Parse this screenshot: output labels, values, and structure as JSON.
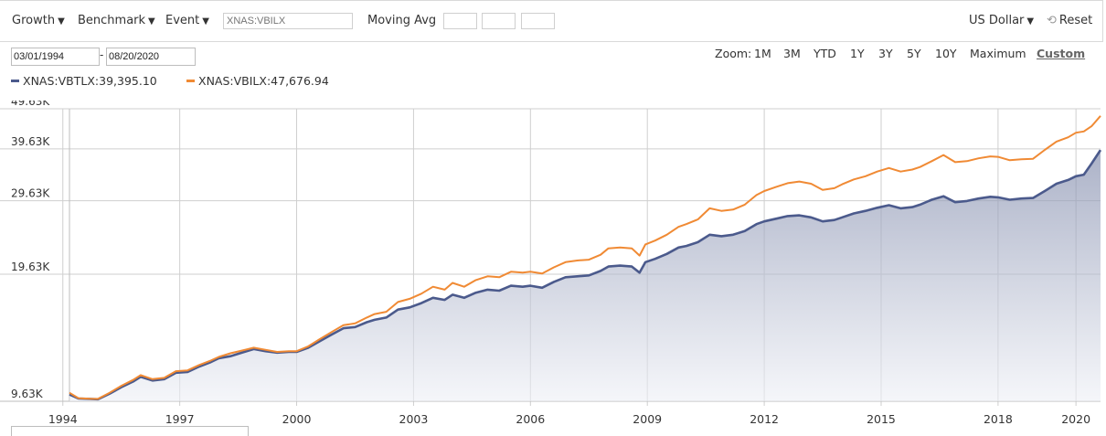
{
  "toolbar": {
    "growth_label": "Growth",
    "benchmark_label": "Benchmark",
    "event_label": "Event",
    "symbol_placeholder": "XNAS:VBILX",
    "moving_avg_label": "Moving Avg",
    "currency_label": "US Dollar",
    "reset_label": "Reset",
    "dropdown_icon": "triangle-down-icon",
    "reset_icon": "reset-icon"
  },
  "date_range": {
    "start": "03/01/1994",
    "separator": "-",
    "end": "08/20/2020"
  },
  "zoom": {
    "label": "Zoom:",
    "options": [
      "1M",
      "3M",
      "YTD",
      "1Y",
      "3Y",
      "5Y",
      "10Y",
      "Maximum",
      "Custom"
    ],
    "active": "Custom"
  },
  "legend": [
    {
      "label": "XNAS:VBTLX:39,395.10",
      "color": "#4b5a8c"
    },
    {
      "label": "XNAS:VBILX:47,676.94",
      "color": "#f08a34"
    }
  ],
  "chart_data": {
    "type": "area",
    "title": "",
    "xlabel": "",
    "ylabel": "",
    "y_scale": "log",
    "ylim": [
      9630,
      49630
    ],
    "yticks": [
      9630,
      19630,
      29630,
      39630,
      49630
    ],
    "ytick_labels": [
      "9.63K",
      "19.63K",
      "29.63K",
      "39.63K",
      "49.63K"
    ],
    "xlim": [
      1994.17,
      2020.63
    ],
    "xticks": [
      1994,
      1997,
      2000,
      2003,
      2006,
      2009,
      2012,
      2015,
      2018,
      2020
    ],
    "xtick_labels": [
      "1994",
      "1997",
      "2000",
      "2003",
      "2006",
      "2009",
      "2012",
      "2015",
      "2018",
      "2020"
    ],
    "grid": true,
    "series": [
      {
        "name": "XNAS:VBTLX",
        "color": "#4b5a8c",
        "fill": true,
        "points": [
          [
            1994.17,
            10000
          ],
          [
            1994.4,
            9780
          ],
          [
            1994.7,
            9760
          ],
          [
            1994.9,
            9740
          ],
          [
            1995.2,
            10050
          ],
          [
            1995.5,
            10420
          ],
          [
            1995.8,
            10750
          ],
          [
            1996.0,
            11050
          ],
          [
            1996.3,
            10820
          ],
          [
            1996.6,
            10900
          ],
          [
            1996.9,
            11300
          ],
          [
            1997.2,
            11350
          ],
          [
            1997.5,
            11700
          ],
          [
            1997.8,
            12000
          ],
          [
            1998.0,
            12250
          ],
          [
            1998.3,
            12400
          ],
          [
            1998.6,
            12650
          ],
          [
            1998.9,
            12900
          ],
          [
            1999.2,
            12750
          ],
          [
            1999.5,
            12650
          ],
          [
            1999.8,
            12700
          ],
          [
            2000.0,
            12700
          ],
          [
            2000.3,
            13000
          ],
          [
            2000.6,
            13500
          ],
          [
            2000.9,
            14000
          ],
          [
            2001.2,
            14500
          ],
          [
            2001.5,
            14600
          ],
          [
            2001.8,
            15000
          ],
          [
            2002.0,
            15200
          ],
          [
            2002.3,
            15400
          ],
          [
            2002.6,
            16100
          ],
          [
            2002.9,
            16300
          ],
          [
            2003.2,
            16700
          ],
          [
            2003.5,
            17200
          ],
          [
            2003.8,
            17000
          ],
          [
            2004.0,
            17500
          ],
          [
            2004.3,
            17200
          ],
          [
            2004.6,
            17700
          ],
          [
            2004.9,
            18000
          ],
          [
            2005.2,
            17900
          ],
          [
            2005.5,
            18400
          ],
          [
            2005.8,
            18300
          ],
          [
            2006.0,
            18400
          ],
          [
            2006.3,
            18200
          ],
          [
            2006.6,
            18800
          ],
          [
            2006.9,
            19300
          ],
          [
            2007.2,
            19400
          ],
          [
            2007.5,
            19500
          ],
          [
            2007.8,
            20000
          ],
          [
            2008.0,
            20500
          ],
          [
            2008.3,
            20600
          ],
          [
            2008.6,
            20500
          ],
          [
            2008.8,
            19800
          ],
          [
            2008.95,
            21000
          ],
          [
            2009.2,
            21400
          ],
          [
            2009.5,
            22000
          ],
          [
            2009.8,
            22800
          ],
          [
            2010.0,
            23000
          ],
          [
            2010.3,
            23500
          ],
          [
            2010.6,
            24500
          ],
          [
            2010.9,
            24300
          ],
          [
            2011.2,
            24500
          ],
          [
            2011.5,
            25000
          ],
          [
            2011.8,
            26000
          ],
          [
            2012.0,
            26400
          ],
          [
            2012.3,
            26800
          ],
          [
            2012.6,
            27200
          ],
          [
            2012.9,
            27300
          ],
          [
            2013.2,
            27000
          ],
          [
            2013.5,
            26400
          ],
          [
            2013.8,
            26600
          ],
          [
            2014.0,
            27000
          ],
          [
            2014.3,
            27600
          ],
          [
            2014.6,
            28000
          ],
          [
            2014.9,
            28500
          ],
          [
            2015.2,
            28900
          ],
          [
            2015.5,
            28400
          ],
          [
            2015.8,
            28600
          ],
          [
            2016.0,
            29000
          ],
          [
            2016.3,
            29800
          ],
          [
            2016.6,
            30400
          ],
          [
            2016.9,
            29400
          ],
          [
            2017.2,
            29600
          ],
          [
            2017.5,
            30000
          ],
          [
            2017.8,
            30300
          ],
          [
            2018.0,
            30200
          ],
          [
            2018.3,
            29800
          ],
          [
            2018.6,
            30000
          ],
          [
            2018.9,
            30100
          ],
          [
            2019.2,
            31300
          ],
          [
            2019.5,
            32600
          ],
          [
            2019.8,
            33300
          ],
          [
            2020.0,
            34000
          ],
          [
            2020.2,
            34300
          ],
          [
            2020.4,
            36500
          ],
          [
            2020.63,
            39395
          ]
        ]
      },
      {
        "name": "XNAS:VBILX",
        "color": "#f08a34",
        "fill": false,
        "points": [
          [
            1994.17,
            10100
          ],
          [
            1994.4,
            9800
          ],
          [
            1994.7,
            9770
          ],
          [
            1994.9,
            9760
          ],
          [
            1995.2,
            10100
          ],
          [
            1995.5,
            10500
          ],
          [
            1995.8,
            10850
          ],
          [
            1996.0,
            11150
          ],
          [
            1996.3,
            10900
          ],
          [
            1996.6,
            10980
          ],
          [
            1996.9,
            11400
          ],
          [
            1997.2,
            11450
          ],
          [
            1997.5,
            11800
          ],
          [
            1997.8,
            12100
          ],
          [
            1998.0,
            12350
          ],
          [
            1998.3,
            12600
          ],
          [
            1998.6,
            12800
          ],
          [
            1998.9,
            13000
          ],
          [
            1999.2,
            12850
          ],
          [
            1999.5,
            12700
          ],
          [
            1999.8,
            12750
          ],
          [
            2000.0,
            12750
          ],
          [
            2000.3,
            13100
          ],
          [
            2000.6,
            13650
          ],
          [
            2000.9,
            14200
          ],
          [
            2001.2,
            14750
          ],
          [
            2001.5,
            14900
          ],
          [
            2001.8,
            15400
          ],
          [
            2002.0,
            15700
          ],
          [
            2002.3,
            15900
          ],
          [
            2002.6,
            16800
          ],
          [
            2002.9,
            17100
          ],
          [
            2003.2,
            17600
          ],
          [
            2003.5,
            18300
          ],
          [
            2003.8,
            18000
          ],
          [
            2004.0,
            18700
          ],
          [
            2004.3,
            18300
          ],
          [
            2004.6,
            19000
          ],
          [
            2004.9,
            19400
          ],
          [
            2005.2,
            19300
          ],
          [
            2005.5,
            19900
          ],
          [
            2005.8,
            19800
          ],
          [
            2006.0,
            19900
          ],
          [
            2006.3,
            19700
          ],
          [
            2006.6,
            20400
          ],
          [
            2006.9,
            21000
          ],
          [
            2007.2,
            21200
          ],
          [
            2007.5,
            21300
          ],
          [
            2007.8,
            21900
          ],
          [
            2008.0,
            22700
          ],
          [
            2008.3,
            22800
          ],
          [
            2008.6,
            22700
          ],
          [
            2008.8,
            21800
          ],
          [
            2008.95,
            23200
          ],
          [
            2009.2,
            23700
          ],
          [
            2009.5,
            24500
          ],
          [
            2009.8,
            25600
          ],
          [
            2010.0,
            26000
          ],
          [
            2010.3,
            26700
          ],
          [
            2010.6,
            28400
          ],
          [
            2010.9,
            28000
          ],
          [
            2011.2,
            28200
          ],
          [
            2011.5,
            29000
          ],
          [
            2011.8,
            30600
          ],
          [
            2012.0,
            31300
          ],
          [
            2012.3,
            32000
          ],
          [
            2012.6,
            32700
          ],
          [
            2012.9,
            33000
          ],
          [
            2013.2,
            32600
          ],
          [
            2013.5,
            31500
          ],
          [
            2013.8,
            31800
          ],
          [
            2014.0,
            32500
          ],
          [
            2014.3,
            33400
          ],
          [
            2014.6,
            34000
          ],
          [
            2014.9,
            34900
          ],
          [
            2015.2,
            35600
          ],
          [
            2015.5,
            34900
          ],
          [
            2015.8,
            35300
          ],
          [
            2016.0,
            35800
          ],
          [
            2016.3,
            37000
          ],
          [
            2016.6,
            38300
          ],
          [
            2016.9,
            36800
          ],
          [
            2017.2,
            37000
          ],
          [
            2017.5,
            37600
          ],
          [
            2017.8,
            38000
          ],
          [
            2018.0,
            37900
          ],
          [
            2018.3,
            37200
          ],
          [
            2018.6,
            37400
          ],
          [
            2018.9,
            37500
          ],
          [
            2019.2,
            39400
          ],
          [
            2019.5,
            41300
          ],
          [
            2019.8,
            42300
          ],
          [
            2020.0,
            43400
          ],
          [
            2020.2,
            43700
          ],
          [
            2020.4,
            45000
          ],
          [
            2020.63,
            47677
          ]
        ]
      }
    ]
  }
}
